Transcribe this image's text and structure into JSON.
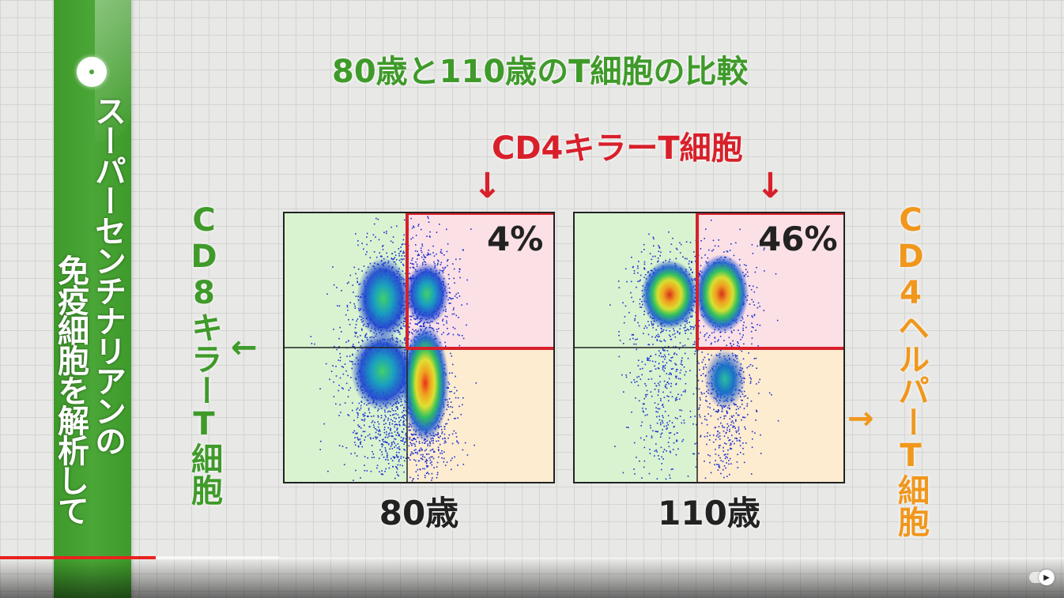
{
  "banner": {
    "line1": "スーパーセンチナリアンの",
    "line2": "免疫細胞を解析して"
  },
  "title": "80歳と110歳のT細胞の比較",
  "cd4_killer_label": "CD4キラーT細胞",
  "cd8_label": "CD8キラーT細胞",
  "cd4_helper_label": "CD4ヘルパーT細胞",
  "arrows": {
    "down": "↓",
    "left": "←",
    "right": "→"
  },
  "plots": [
    {
      "caption": "80歳",
      "percent": "4%"
    },
    {
      "caption": "110歳",
      "percent": "46%"
    }
  ],
  "colors": {
    "green": "#3f9a2a",
    "red": "#d8202a",
    "orange": "#f0971c",
    "quad_green": "#d9f3d0",
    "quad_pink": "#fbe1e6",
    "quad_orange": "#fdecd0"
  },
  "video": {
    "progress": 0.146,
    "buffered": 0.262,
    "autoplay_icon": "play-icon"
  }
}
